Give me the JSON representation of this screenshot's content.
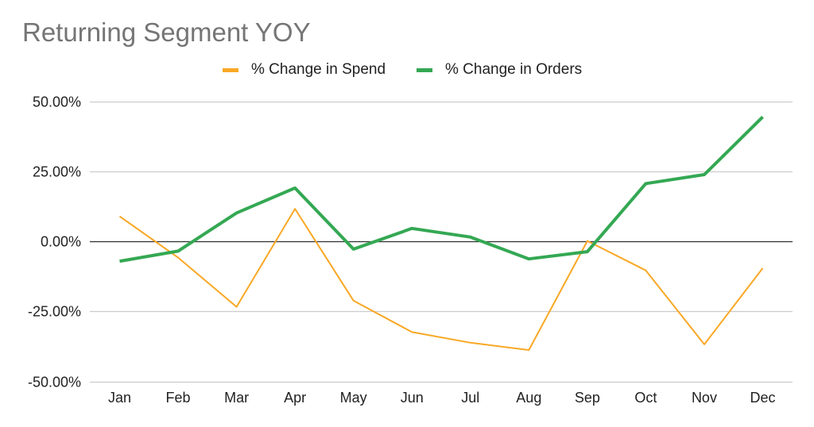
{
  "chart_data": {
    "type": "line",
    "title": "Returning Segment YOY",
    "xlabel": "",
    "ylabel": "",
    "categories": [
      "Jan",
      "Feb",
      "Mar",
      "Apr",
      "May",
      "Jun",
      "Jul",
      "Aug",
      "Sep",
      "Oct",
      "Nov",
      "Dec"
    ],
    "series": [
      {
        "name": "% Change in Spend",
        "color": "#f9a825",
        "line_width": 2,
        "values": [
          8.9,
          -5.8,
          -23.4,
          11.6,
          -21.2,
          -32.4,
          -36.2,
          -38.8,
          0.1,
          -10.4,
          -36.8,
          -9.6
        ]
      },
      {
        "name": "% Change in Orders",
        "color": "#34a853",
        "line_width": 4,
        "values": [
          -7.1,
          -3.5,
          10.1,
          19.0,
          -2.8,
          4.6,
          1.5,
          -6.3,
          -3.7,
          20.6,
          23.8,
          44.4
        ]
      }
    ],
    "ylim": [
      -50,
      50
    ],
    "yticks": [
      50,
      25,
      0,
      -25,
      -50
    ],
    "ytick_labels": [
      "50.00%",
      "25.00%",
      "0.00%",
      "-25.00%",
      "-50.00%"
    ],
    "grid": true,
    "zero_line": true,
    "legend_position": "top"
  },
  "legend": {
    "spend_label": "% Change in Spend",
    "orders_label": "% Change in Orders"
  }
}
